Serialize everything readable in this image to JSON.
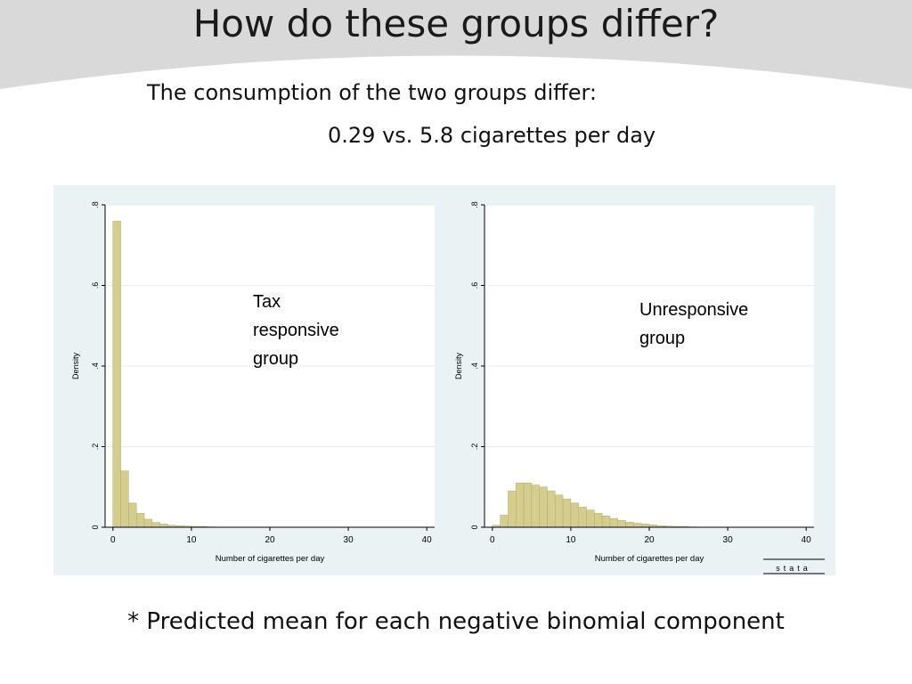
{
  "slide": {
    "title": "How do these groups differ?",
    "subtitle_line1": "The consumption of the two groups differ:",
    "subtitle_line2": "0.29 vs. 5.8 cigarettes per day",
    "footnote": "* Predicted mean for each negative binomial component"
  },
  "colors": {
    "bar_fill": "#d4cd8e",
    "bar_stroke": "#a9a364",
    "panel_bg": "#eaf2f3",
    "plot_bg": "#ffffff",
    "grid": "#e6eeee",
    "header_band": "#d9d9d9"
  },
  "branding": {
    "logo_text": "stata"
  },
  "chart_data": [
    {
      "type": "bar",
      "annotation": "Tax responsive group",
      "annotation_lines": [
        "Tax",
        "responsive",
        "group"
      ],
      "xlabel": "Number of cigarettes per day",
      "ylabel": "Density",
      "xlim": [
        -1,
        41
      ],
      "ylim": [
        0,
        0.8
      ],
      "xticks": [
        0,
        10,
        20,
        30,
        40
      ],
      "yticks": [
        0,
        0.2,
        0.4,
        0.6,
        0.8
      ],
      "ytick_labels": [
        "0",
        ".2",
        ".4",
        ".6",
        ".8"
      ],
      "grid": true,
      "bin_width": 1,
      "bins_start": [
        0,
        1,
        2,
        3,
        4,
        5,
        6,
        7,
        8,
        9,
        10,
        11,
        12
      ],
      "values": [
        0.76,
        0.14,
        0.06,
        0.035,
        0.02,
        0.012,
        0.008,
        0.005,
        0.004,
        0.003,
        0.002,
        0.002,
        0.001
      ]
    },
    {
      "type": "bar",
      "annotation": "Unresponsive group",
      "annotation_lines": [
        "Unresponsive",
        "group"
      ],
      "xlabel": "Number of cigarettes per day",
      "ylabel": "Density",
      "xlim": [
        -1,
        41
      ],
      "ylim": [
        0,
        0.8
      ],
      "xticks": [
        0,
        10,
        20,
        30,
        40
      ],
      "yticks": [
        0,
        0.2,
        0.4,
        0.6,
        0.8
      ],
      "ytick_labels": [
        "0",
        ".2",
        ".4",
        ".6",
        ".8"
      ],
      "grid": true,
      "bin_width": 1,
      "bins_start": [
        0,
        1,
        2,
        3,
        4,
        5,
        6,
        7,
        8,
        9,
        10,
        11,
        12,
        13,
        14,
        15,
        16,
        17,
        18,
        19,
        20,
        21,
        22,
        23,
        24,
        25
      ],
      "values": [
        0.005,
        0.03,
        0.09,
        0.11,
        0.11,
        0.105,
        0.1,
        0.09,
        0.08,
        0.07,
        0.06,
        0.05,
        0.043,
        0.035,
        0.028,
        0.022,
        0.017,
        0.013,
        0.01,
        0.008,
        0.006,
        0.004,
        0.003,
        0.002,
        0.002,
        0.001
      ]
    }
  ]
}
